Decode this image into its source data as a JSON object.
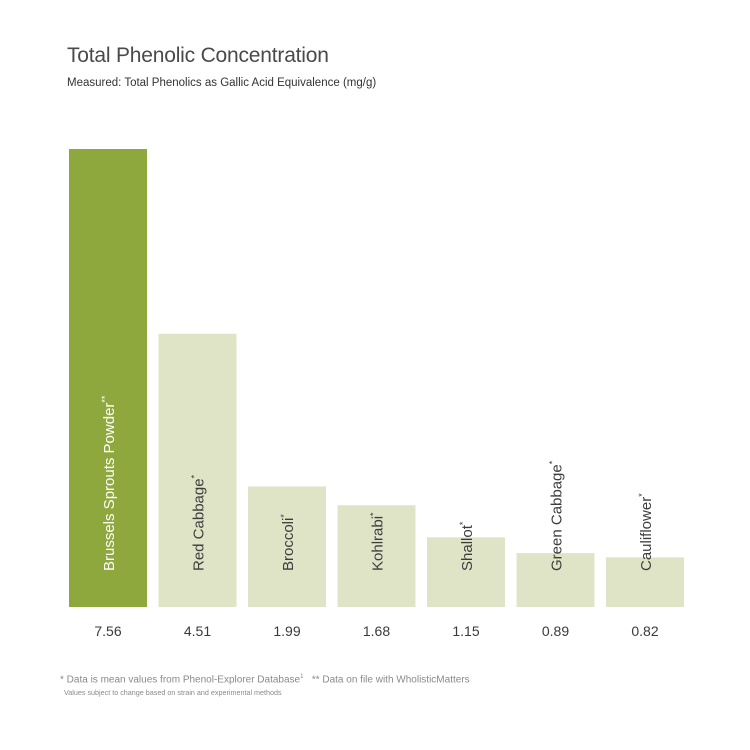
{
  "chart_data": {
    "type": "bar",
    "title": "Total Phenolic Concentration",
    "subtitle": "Measured: Total Phenolics as Gallic Acid Equivalence (mg/g)",
    "ylim": [
      0,
      7.56
    ],
    "grid": false,
    "categories": [
      {
        "label": "Brussels Sprouts Powder",
        "mark": "**"
      },
      {
        "label": "Red Cabbage",
        "mark": "*"
      },
      {
        "label": "Broccoli",
        "mark": "*"
      },
      {
        "label": "Kohlrabi",
        "mark": "*"
      },
      {
        "label": "Shallot",
        "mark": "*"
      },
      {
        "label": "Green Cabbage",
        "mark": "*"
      },
      {
        "label": "Cauliflower",
        "mark": "*"
      }
    ],
    "values": [
      7.56,
      4.51,
      1.99,
      1.68,
      1.15,
      0.89,
      0.82
    ],
    "value_labels": [
      "7.56",
      "4.51",
      "1.99",
      "1.68",
      "1.15",
      "0.89",
      "0.82"
    ],
    "colors": {
      "highlight_bar": "#8fa83d",
      "bar": "#e0e4c7",
      "highlight_label": "#ffffff",
      "label": "#3d3d3d",
      "value": "#3a3a3a"
    }
  },
  "footnotes": {
    "line1_a": "* Data is mean values from Phenol-Explorer Database",
    "line1_sup": "1",
    "line1_b": "** Data on file with WholisticMatters",
    "line2": "Values subject to change based on strain and experimental methods"
  }
}
